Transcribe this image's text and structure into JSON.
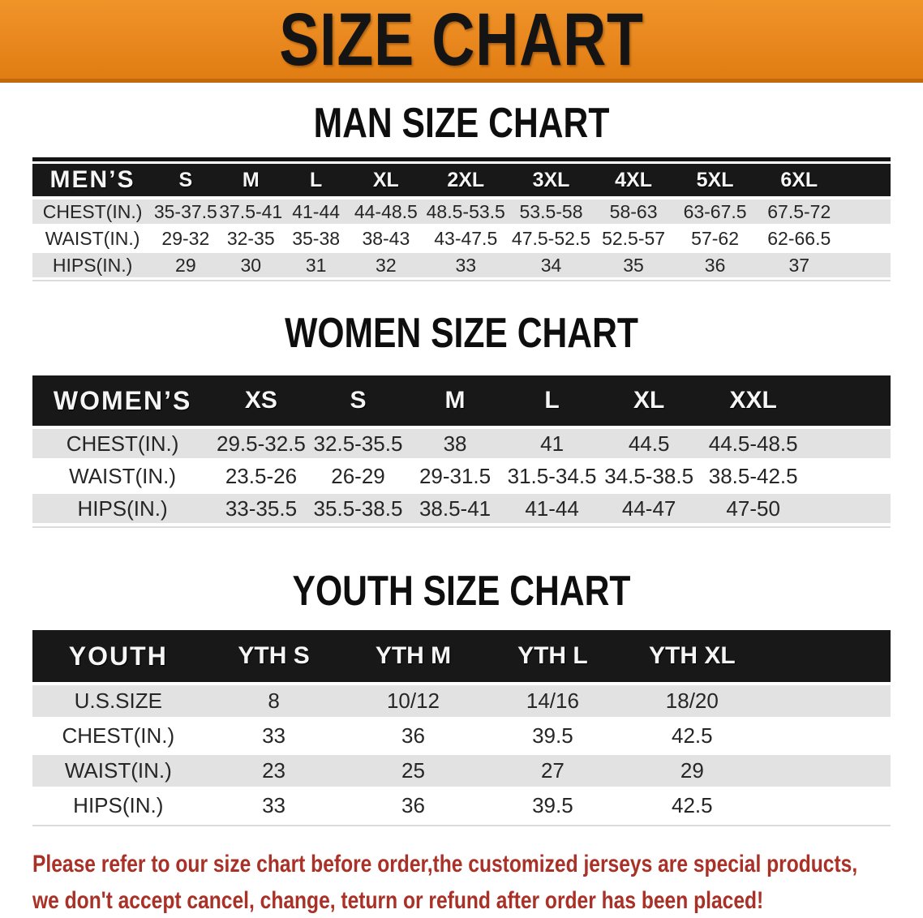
{
  "banner": {
    "title": "SIZE CHART"
  },
  "sections": [
    {
      "heading": "MAN SIZE CHART",
      "table": {
        "label": "MEN’S",
        "sizes": [
          "S",
          "M",
          "L",
          "XL",
          "2XL",
          "3XL",
          "4XL",
          "5XL",
          "6XL"
        ],
        "rows": [
          {
            "label": "CHEST(IN.)",
            "values": [
              "35-37.5",
              "37.5-41",
              "41-44",
              "44-48.5",
              "48.5-53.5",
              "53.5-58",
              "58-63",
              "63-67.5",
              "67.5-72"
            ]
          },
          {
            "label": "WAIST(IN.)",
            "values": [
              "29-32",
              "32-35",
              "35-38",
              "38-43",
              "43-47.5",
              "47.5-52.5",
              "52.5-57",
              "57-62",
              "62-66.5"
            ]
          },
          {
            "label": "HIPS(IN.)",
            "values": [
              "29",
              "30",
              "31",
              "32",
              "33",
              "34",
              "35",
              "36",
              "37"
            ]
          }
        ]
      }
    },
    {
      "heading": "WOMEN SIZE CHART",
      "table": {
        "label": "WOMEN’S",
        "sizes": [
          "XS",
          "S",
          "M",
          "L",
          "XL",
          "XXL"
        ],
        "rows": [
          {
            "label": "CHEST(IN.)",
            "values": [
              "29.5-32.5",
              "32.5-35.5",
              "38",
              "41",
              "44.5",
              "44.5-48.5"
            ]
          },
          {
            "label": "WAIST(IN.)",
            "values": [
              "23.5-26",
              "26-29",
              "29-31.5",
              "31.5-34.5",
              "34.5-38.5",
              "38.5-42.5"
            ]
          },
          {
            "label": "HIPS(IN.)",
            "values": [
              "33-35.5",
              "35.5-38.5",
              "38.5-41",
              "41-44",
              "44-47",
              "47-50"
            ]
          }
        ]
      }
    },
    {
      "heading": "YOUTH SIZE CHART",
      "table": {
        "label": "YOUTH",
        "sizes": [
          "YTH S",
          "YTH M",
          "YTH L",
          "YTH XL"
        ],
        "rows": [
          {
            "label": "U.S.SIZE",
            "values": [
              "8",
              "10/12",
              "14/16",
              "18/20"
            ]
          },
          {
            "label": "CHEST(IN.)",
            "values": [
              "33",
              "36",
              "39.5",
              "42.5"
            ]
          },
          {
            "label": "WAIST(IN.)",
            "values": [
              "23",
              "25",
              "27",
              "29"
            ]
          },
          {
            "label": "HIPS(IN.)",
            "values": [
              "33",
              "36",
              "39.5",
              "42.5"
            ]
          }
        ]
      }
    }
  ],
  "footer": {
    "line1": "Please refer to our size chart before order,the customized jerseys are special products,",
    "line2": "we don't accept cancel, change, teturn or refund after order has been placed!"
  },
  "colors": {
    "banner_orange": "#E8871E",
    "banner_edge": "#C1690C",
    "band_black": "#181818",
    "row_gray": "#E2E2E2",
    "footer_red": "#A93127"
  }
}
